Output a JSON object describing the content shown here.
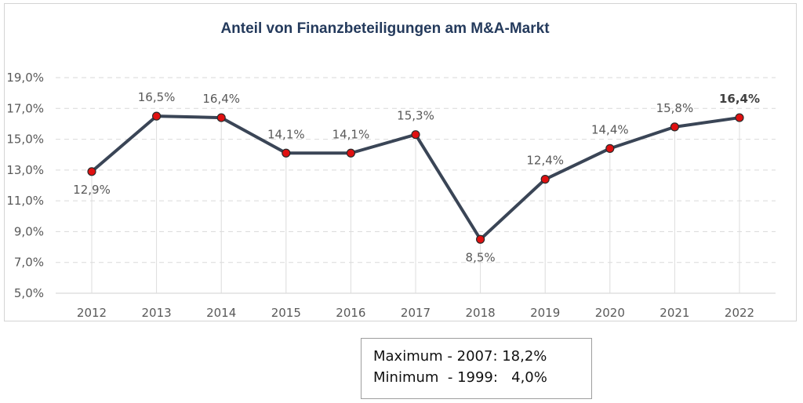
{
  "chart_data": {
    "type": "line",
    "title": "Anteil von Finanzbeteiligungen am M&A-Markt",
    "xlabel": "",
    "ylabel": "",
    "categories": [
      "2012",
      "2013",
      "2014",
      "2015",
      "2016",
      "2017",
      "2018",
      "2019",
      "2020",
      "2021",
      "2022"
    ],
    "series": [
      {
        "values": [
          12.9,
          16.5,
          16.4,
          14.1,
          14.1,
          15.3,
          8.5,
          12.4,
          14.4,
          15.8,
          16.4
        ]
      }
    ],
    "data_labels": [
      "12,9%",
      "16,5%",
      "16,4%",
      "14,1%",
      "14,1%",
      "15,3%",
      "8,5%",
      "12,4%",
      "14,4%",
      "15,8%",
      "16,4%"
    ],
    "ylim": [
      5,
      19
    ],
    "yticks": [
      5,
      7,
      9,
      11,
      13,
      15,
      17,
      19
    ],
    "ytick_labels": [
      "5,0%",
      "7,0%",
      "9,0%",
      "11,0%",
      "13,0%",
      "15,0%",
      "17,0%",
      "19,0%"
    ],
    "grid": true,
    "line_color": "#3a4556",
    "marker_color": "#e01010"
  },
  "note": {
    "line1": "Maximum - 2007: 18,2%",
    "line2": "Minimum  - 1999:   4,0%"
  }
}
